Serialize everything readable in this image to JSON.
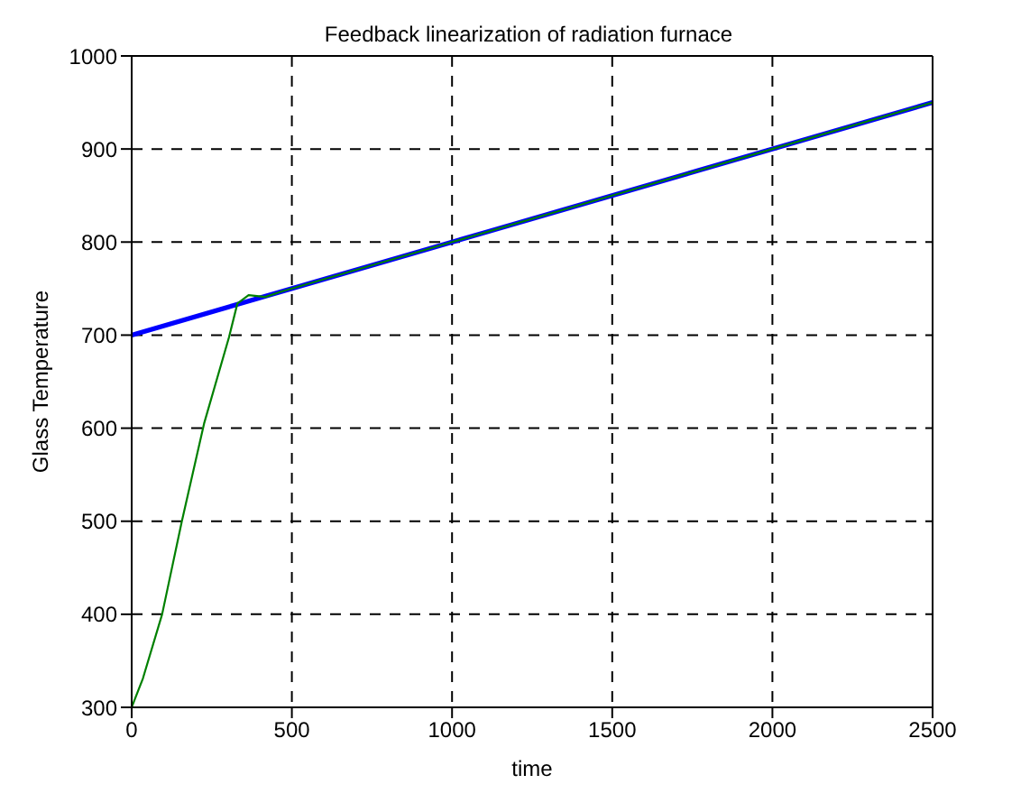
{
  "chart_data": {
    "type": "line",
    "title": "Feedback linearization of radiation furnace",
    "xlabel": "time",
    "ylabel": "Glass Temperature",
    "xlim": [
      0,
      2500
    ],
    "ylim": [
      300,
      1000
    ],
    "xticks": [
      0,
      500,
      1000,
      1500,
      2000,
      2500
    ],
    "yticks": [
      300,
      400,
      500,
      600,
      700,
      800,
      900,
      1000
    ],
    "grid": true,
    "marker": "none",
    "series": [
      {
        "color": "#0000ff",
        "x": [
          0,
          2500
        ],
        "values": [
          700,
          950
        ]
      },
      {
        "color": "#008000",
        "x": [
          0,
          35,
          95,
          156,
          226,
          304,
          330,
          365,
          391,
          417,
          469,
          1000,
          1500,
          2000,
          2500
        ],
        "values": [
          300,
          331,
          400,
          499,
          605,
          698,
          734,
          743,
          742,
          741,
          747,
          800,
          850,
          900,
          950
        ]
      }
    ]
  }
}
